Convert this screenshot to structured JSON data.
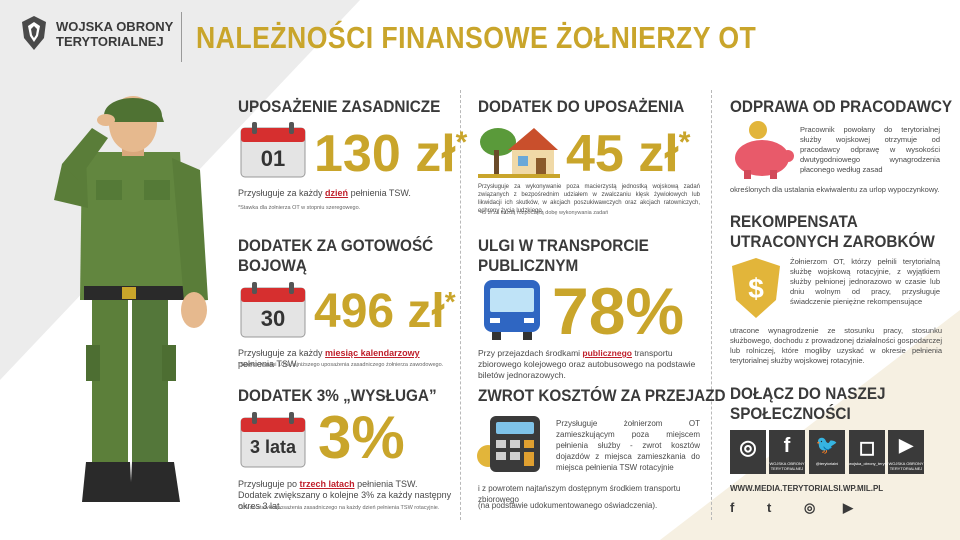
{
  "header": {
    "org_line1": "WOJSKA OBRONY",
    "org_line2": "TERYTORIALNEJ",
    "title": "NALEŻNOŚCI FINANSOWE ŻOŁNIERZY OT"
  },
  "col1": {
    "s1": {
      "title": "UPOSAŻENIE ZASADNICZE",
      "calendar": "01",
      "amount": "130 zł",
      "asterisk": "*",
      "text_before": "Przysługuje za każdy ",
      "text_highlight": "dzień",
      "text_after": " pełnienia TSW.",
      "footnote": "*Stawka dla żołnierza OT w stopniu szeregowego."
    },
    "s2": {
      "title1": "DODATEK ZA GOTOWOŚĆ",
      "title2": "BOJOWĄ",
      "calendar": "30",
      "amount": "496 zł",
      "asterisk": "*",
      "text_before": "Przysługuje za każdy ",
      "text_highlight": "miesiąc kalendarzowy",
      "text_after": " pełnienia TSW.",
      "footnote": "*Stawka wynosi 10% najniższego uposażenia zasadniczego żołnierza zawodowego."
    },
    "s3": {
      "title": "DODATEK 3% „WYSŁUGA”",
      "calendar": "3 lata",
      "amount": "3%",
      "text_before": "Przysługuje po ",
      "text_highlight": "trzech latach",
      "text_after": " pełnienia TSW.",
      "text_line2": "Dodatek zwiększany o kolejne 3% za każdy następny okres 3 lat.",
      "footnote": "*3% do stawki uposażenia zasadniczego na każdy dzień pełnienia TSW rotacyjnie."
    }
  },
  "col2": {
    "s1": {
      "title": "DODATEK DO UPOSAŻENIA",
      "amount": "45 zł",
      "asterisk": "*",
      "text": "Przysługuje za wykonywanie poza macierzystą jednostką wojskową zadań związanych z bezpośrednim udziałem w zwalczaniu klęsk żywiołowych lub likwidacji ich skutków, w akcjach poszukiwawczych oraz akcjach ratowniczych, ochrony życia ludzkiego.",
      "footnote": "*45 zł za każdą rozpoczętą dobę wykonywania zadań"
    },
    "s2": {
      "title1": "ULGI W TRANSPORCIE",
      "title2": "PUBLICZNYM",
      "amount": "78%",
      "text_before": "Przy przejazdach środkami ",
      "text_highlight": "publicznego",
      "text_after": " transportu zbiorowego kolejowego oraz autobusowego na podstawie biletów jednorazowych."
    },
    "s3": {
      "title": "ZWROT KOSZTÓW ZA PRZEJAZD",
      "text": "Przysługuje żołnierzom OT zamieszkującym poza miejscem pełnienia służby - zwrot kosztów dojazdów z miejsca zamieszkania do miejsca pełnienia TSW rotacyjnie",
      "text_line2": "i z powrotem najtańszym dostępnym środkiem transportu zbiorowego",
      "text_line3": "(na podstawie udokumentowanego oświadczenia)."
    }
  },
  "col3": {
    "s1": {
      "title": "ODPRAWA OD PRACODAWCY",
      "text": "Pracownik powołany do terytorialnej służby wojskowej otrzymuje od pracodawcy odprawę w wysokości dwutygodniowego wynagrodzenia płaconego według zasad",
      "text_line2": "określonych dla ustalania ekwiwalentu za urlop wypoczynkowy."
    },
    "s2": {
      "title1": "REKOMPENSATA",
      "title2": "UTRACONYCH ZAROBKÓW",
      "text": "Żołnierzom OT, którzy pełnili terytorialną służbę wojskową rotacyjnie, z wyjątkiem służby pełnionej jednorazowo w czasie lub dniu wolnym od pracy, przysługuje świadczenie pieniężne rekompensujące",
      "text_line2": "utracone wynagrodzenie ze stosunku pracy, stosunku służbowego, dochodu z prowadzonej działalności gospodarczej lub rolniczej, które mogliby uzyskać w okresie pełnienia terytorialnej służby wojskowej rotacyjnie."
    },
    "community": {
      "title1": "DOŁĄCZ DO NASZEJ",
      "title2": "SPOŁECZNOŚCI",
      "tiles": [
        {
          "glyph": "◎",
          "caption": ""
        },
        {
          "glyph": "f",
          "caption": "WOJSKA OBRONY TERYTORIALNEJ"
        },
        {
          "glyph": "🐦",
          "caption": "@terytorialni"
        },
        {
          "glyph": "◻",
          "caption": "wojska_obrony_terytorialnej"
        },
        {
          "glyph": "▶",
          "caption": "WOJSKA OBRONY TERYTORIALNEJ"
        }
      ],
      "url": "WWW.MEDIA.TERYTORIALSI.WP.MIL.PL",
      "footer_icons": [
        "f",
        "t",
        "◎",
        "▶"
      ]
    }
  },
  "colors": {
    "gold": "#c9a52b",
    "dark": "#3a3a3a",
    "red": "#c0202c",
    "olive": "#5c7f3a"
  }
}
